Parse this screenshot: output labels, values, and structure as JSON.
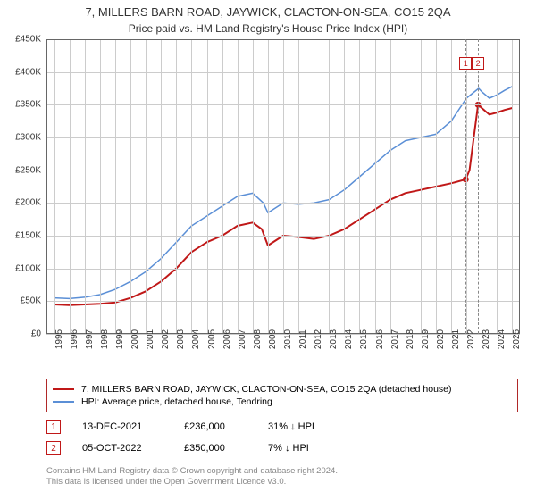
{
  "title": "7, MILLERS BARN ROAD, JAYWICK, CLACTON-ON-SEA, CO15 2QA",
  "subtitle": "Price paid vs. HM Land Registry's House Price Index (HPI)",
  "chart": {
    "type": "line",
    "xlim": [
      1994.5,
      2025.5
    ],
    "ylim": [
      0,
      450000
    ],
    "ytick_step": 50000,
    "yticks_labels": [
      "£0",
      "£50K",
      "£100K",
      "£150K",
      "£200K",
      "£250K",
      "£300K",
      "£350K",
      "£400K",
      "£450K"
    ],
    "xticks": [
      1995,
      1996,
      1997,
      1998,
      1999,
      2000,
      2001,
      2002,
      2003,
      2004,
      2005,
      2006,
      2007,
      2008,
      2009,
      2010,
      2011,
      2012,
      2013,
      2014,
      2015,
      2016,
      2017,
      2018,
      2019,
      2020,
      2021,
      2022,
      2023,
      2024,
      2025
    ],
    "background_color": "#ffffff",
    "grid_color": "#cccccc",
    "axis_color": "#666666",
    "series": [
      {
        "name": "property",
        "label": "7, MILLERS BARN ROAD, JAYWICK, CLACTON-ON-SEA, CO15 2QA (detached house)",
        "color": "#c01818",
        "width": 2,
        "data": [
          [
            1995,
            45000
          ],
          [
            1996,
            44000
          ],
          [
            1997,
            45000
          ],
          [
            1998,
            46000
          ],
          [
            1999,
            48000
          ],
          [
            2000,
            55000
          ],
          [
            2001,
            65000
          ],
          [
            2002,
            80000
          ],
          [
            2003,
            100000
          ],
          [
            2004,
            125000
          ],
          [
            2005,
            140000
          ],
          [
            2006,
            150000
          ],
          [
            2007,
            165000
          ],
          [
            2008,
            170000
          ],
          [
            2008.6,
            160000
          ],
          [
            2009,
            135000
          ],
          [
            2010,
            150000
          ],
          [
            2011,
            148000
          ],
          [
            2012,
            145000
          ],
          [
            2013,
            150000
          ],
          [
            2014,
            160000
          ],
          [
            2015,
            175000
          ],
          [
            2016,
            190000
          ],
          [
            2017,
            205000
          ],
          [
            2018,
            215000
          ],
          [
            2019,
            220000
          ],
          [
            2020,
            225000
          ],
          [
            2021,
            230000
          ],
          [
            2021.95,
            236000
          ],
          [
            2022.2,
            250000
          ],
          [
            2022.76,
            350000
          ],
          [
            2023,
            345000
          ],
          [
            2023.5,
            335000
          ],
          [
            2024,
            338000
          ],
          [
            2024.5,
            342000
          ],
          [
            2025,
            345000
          ]
        ]
      },
      {
        "name": "hpi",
        "label": "HPI: Average price, detached house, Tendring",
        "color": "#5b8fd6",
        "width": 1.5,
        "data": [
          [
            1995,
            55000
          ],
          [
            1996,
            54000
          ],
          [
            1997,
            56000
          ],
          [
            1998,
            60000
          ],
          [
            1999,
            68000
          ],
          [
            2000,
            80000
          ],
          [
            2001,
            95000
          ],
          [
            2002,
            115000
          ],
          [
            2003,
            140000
          ],
          [
            2004,
            165000
          ],
          [
            2005,
            180000
          ],
          [
            2006,
            195000
          ],
          [
            2007,
            210000
          ],
          [
            2008,
            215000
          ],
          [
            2008.7,
            200000
          ],
          [
            2009,
            185000
          ],
          [
            2010,
            200000
          ],
          [
            2011,
            198000
          ],
          [
            2012,
            200000
          ],
          [
            2013,
            205000
          ],
          [
            2014,
            220000
          ],
          [
            2015,
            240000
          ],
          [
            2016,
            260000
          ],
          [
            2017,
            280000
          ],
          [
            2018,
            295000
          ],
          [
            2019,
            300000
          ],
          [
            2020,
            305000
          ],
          [
            2021,
            325000
          ],
          [
            2022,
            360000
          ],
          [
            2022.8,
            375000
          ],
          [
            2023,
            370000
          ],
          [
            2023.5,
            360000
          ],
          [
            2024,
            365000
          ],
          [
            2024.5,
            372000
          ],
          [
            2025,
            378000
          ]
        ]
      }
    ],
    "markers": [
      {
        "n": "1",
        "x": 2021.95,
        "y": 236000,
        "color": "#c01818"
      },
      {
        "n": "2",
        "x": 2022.76,
        "y": 350000,
        "color": "#c01818"
      }
    ]
  },
  "legend": {
    "items": [
      {
        "color": "#c01818",
        "width": 2,
        "label": "7, MILLERS BARN ROAD, JAYWICK, CLACTON-ON-SEA, CO15 2QA (detached house)"
      },
      {
        "color": "#5b8fd6",
        "width": 1.5,
        "label": "HPI: Average price, detached house, Tendring"
      }
    ]
  },
  "sales": [
    {
      "n": "1",
      "color": "#c01818",
      "date": "13-DEC-2021",
      "price": "£236,000",
      "pct": "31% ",
      "dir": "↓",
      "ref": "HPI"
    },
    {
      "n": "2",
      "color": "#c01818",
      "date": "05-OCT-2022",
      "price": "£350,000",
      "pct": "7% ",
      "dir": "↓",
      "ref": "HPI"
    }
  ],
  "footer_line1": "Contains HM Land Registry data © Crown copyright and database right 2024.",
  "footer_line2": "This data is licensed under the Open Government Licence v3.0."
}
